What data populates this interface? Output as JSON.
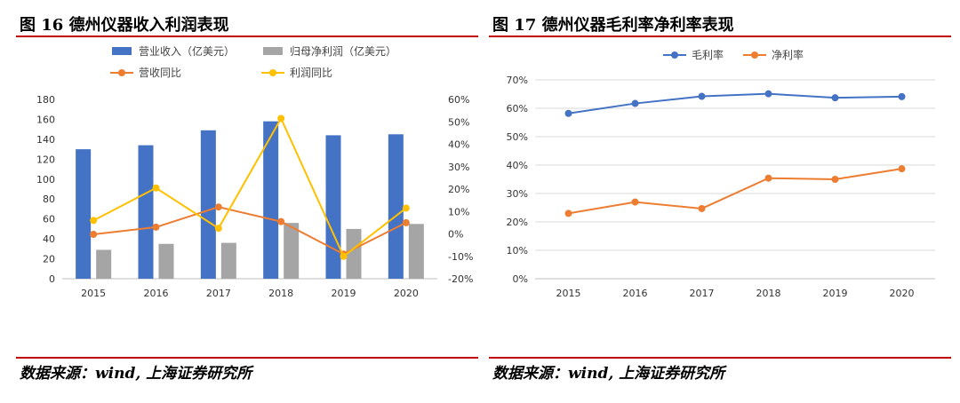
{
  "figures": [
    {
      "title": "图 16 德州仪器收入利润表现",
      "source": "数据来源：wind, 上海证券研究所"
    },
    {
      "title": "图 17 德州仪器毛利率净利率表现",
      "source": "数据来源：wind, 上海证券研究所"
    }
  ],
  "colors": {
    "rule": "#c00000",
    "blue_bar": "#4472c4",
    "gray_bar": "#a5a5a5",
    "orange": "#ed7d31",
    "yellow": "#ffc000",
    "blue_line": "#4472c4"
  },
  "chart_data": [
    {
      "type": "bar",
      "title": "",
      "categories": [
        "2015",
        "2016",
        "2017",
        "2018",
        "2019",
        "2020"
      ],
      "legend_position": "top",
      "grid": false,
      "y_left": {
        "ylim": [
          0,
          180
        ],
        "ticks": [
          "0",
          "20",
          "40",
          "60",
          "80",
          "100",
          "120",
          "140",
          "160",
          "180"
        ]
      },
      "y_right": {
        "ylim": [
          -0.2,
          0.6
        ],
        "ticks": [
          "-20%",
          "-10%",
          "0%",
          "10%",
          "20%",
          "30%",
          "40%",
          "50%",
          "60%"
        ]
      },
      "series": [
        {
          "name": "营业收入（亿美元）",
          "kind": "bar",
          "axis": "left",
          "values": [
            130,
            134,
            149,
            158,
            144,
            145
          ]
        },
        {
          "name": "归母净利润（亿美元）",
          "kind": "bar",
          "axis": "left",
          "values": [
            29,
            35,
            36,
            56,
            50,
            55
          ]
        },
        {
          "name": "营收同比",
          "kind": "line",
          "axis": "right",
          "values": [
            -0.002,
            0.03,
            0.12,
            0.055,
            -0.09,
            0.05
          ]
        },
        {
          "name": "利润同比",
          "kind": "line",
          "axis": "right",
          "values": [
            0.06,
            0.205,
            0.025,
            0.515,
            -0.1,
            0.115
          ]
        }
      ]
    },
    {
      "type": "line",
      "title": "",
      "categories": [
        "2015",
        "2016",
        "2017",
        "2018",
        "2019",
        "2020"
      ],
      "legend_position": "top",
      "grid": true,
      "ylim": [
        0,
        0.7
      ],
      "y_ticks": [
        "0%",
        "10%",
        "20%",
        "30%",
        "40%",
        "50%",
        "60%",
        "70%"
      ],
      "series": [
        {
          "name": "毛利率",
          "values": [
            0.582,
            0.617,
            0.642,
            0.651,
            0.637,
            0.641
          ]
        },
        {
          "name": "净利率",
          "values": [
            0.23,
            0.27,
            0.247,
            0.354,
            0.35,
            0.387
          ]
        }
      ]
    }
  ]
}
